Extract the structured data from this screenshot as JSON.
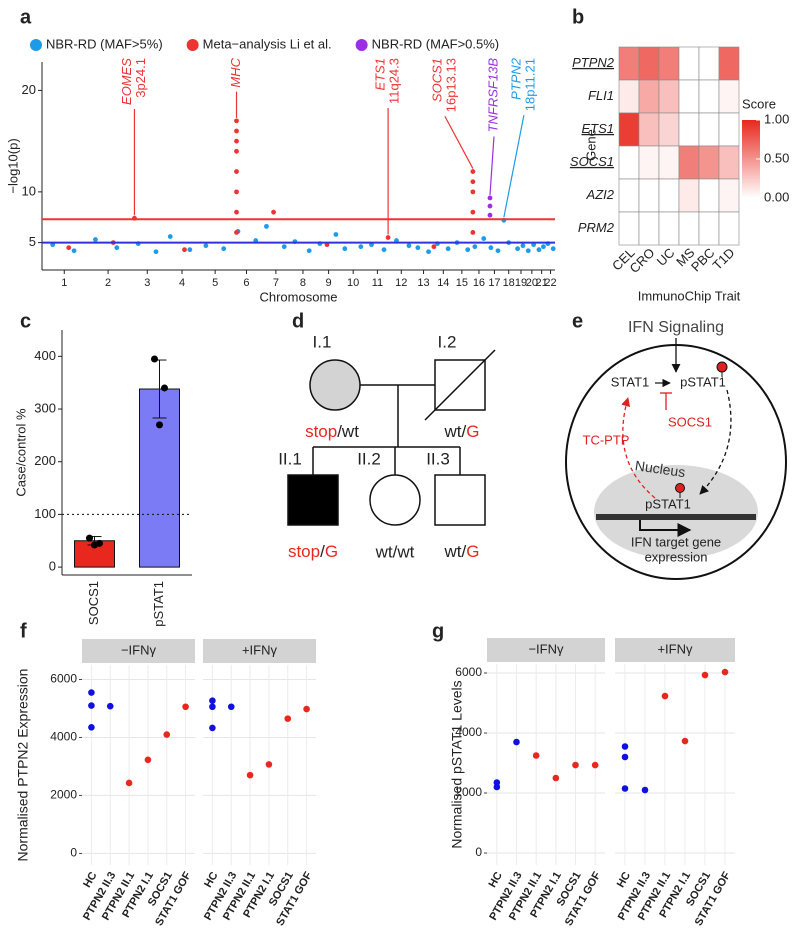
{
  "chart_data": [
    {
      "type": "scatter",
      "panel_label": "a",
      "ylabel": "−log10(p)",
      "xlabel": "Chromosome",
      "xlim": [
        0,
        2880
      ],
      "xticks": [
        {
          "value": 125,
          "label": "1"
        },
        {
          "value": 371,
          "label": "2"
        },
        {
          "value": 591,
          "label": "3"
        },
        {
          "value": 786,
          "label": "4"
        },
        {
          "value": 972,
          "label": "5"
        },
        {
          "value": 1148,
          "label": "6"
        },
        {
          "value": 1313,
          "label": "7"
        },
        {
          "value": 1465,
          "label": "8"
        },
        {
          "value": 1609,
          "label": "9"
        },
        {
          "value": 1747,
          "label": "10"
        },
        {
          "value": 1883,
          "label": "11"
        },
        {
          "value": 2017,
          "label": "12"
        },
        {
          "value": 2142,
          "label": "13"
        },
        {
          "value": 2253,
          "label": "14"
        },
        {
          "value": 2357,
          "label": "15"
        },
        {
          "value": 2453,
          "label": "16"
        },
        {
          "value": 2540,
          "label": "17"
        },
        {
          "value": 2620,
          "label": "18"
        },
        {
          "value": 2689,
          "label": "19"
        },
        {
          "value": 2750,
          "label": "20"
        },
        {
          "value": 2805,
          "label": "21"
        },
        {
          "value": 2855,
          "label": "22"
        }
      ],
      "ylim": [
        2.3,
        22.8
      ],
      "yticks": [
        5,
        10,
        20
      ],
      "hlines": [
        {
          "value": 7.3,
          "color": "#ee3333"
        },
        {
          "value": 5,
          "color": "#3030e0"
        }
      ],
      "legend_position": "top",
      "series": [
        {
          "name": "NBR-RD (MAF>5%)",
          "color": "#1e9be8",
          "x": [
            60,
            180,
            300,
            420,
            540,
            640,
            720,
            830,
            920,
            1020,
            1100,
            1200,
            1260,
            1360,
            1420,
            1500,
            1560,
            1650,
            1700,
            1790,
            1850,
            1920,
            1990,
            2060,
            2110,
            2170,
            2220,
            2280,
            2330,
            2390,
            2430,
            2480,
            2520,
            2560,
            2593,
            2620,
            2670,
            2700,
            2730,
            2760,
            2790,
            2815,
            2840,
            2870
          ],
          "values": [
            4.8,
            4.2,
            5.3,
            4.5,
            4.9,
            4.1,
            5.6,
            4.3,
            4.7,
            4.4,
            6.1,
            5.2,
            6.6,
            4.6,
            5.1,
            4.2,
            4.9,
            5.8,
            4.4,
            4.6,
            4.8,
            4.3,
            5.2,
            4.7,
            4.5,
            4.1,
            4.9,
            4.4,
            5.0,
            4.3,
            4.6,
            5.4,
            4.5,
            4.2,
            7.2,
            5.0,
            4.4,
            4.7,
            4.2,
            4.8,
            4.3,
            4.6,
            4.9,
            4.4
          ]
        },
        {
          "name": "Meta−analysis Li et al.",
          "color": "#ee3333",
          "x": [
            519,
            1092,
            1092,
            1092,
            1092,
            1092,
            1092,
            1092,
            1092,
            1300,
            1943,
            2419,
            2419,
            2419,
            2419,
            2419,
            150,
            400,
            800,
            1600,
            2200
          ],
          "values": [
            7.4,
            6,
            8,
            10,
            12,
            14,
            15,
            16,
            17,
            8.0,
            5.5,
            6,
            8,
            10,
            11,
            12,
            4.5,
            5.0,
            4.3,
            4.8,
            4.6
          ]
        },
        {
          "name": "NBR-RD (MAF>0.5%)",
          "color": "#9b30e0",
          "x": [
            2515,
            2515,
            2515
          ],
          "values": [
            9.4,
            8.6,
            7.7
          ]
        }
      ],
      "annotations": [
        {
          "lines": [
            "EOMES",
            "3p24.1"
          ],
          "x": 519,
          "y": 7.4,
          "color": "#ee3333"
        },
        {
          "lines": [
            "MHC"
          ],
          "x": 1092,
          "y": 17,
          "color": "#ee3333"
        },
        {
          "lines": [
            "ETS1",
            "11q24.3"
          ],
          "x": 1943,
          "y": 5.5,
          "color": "#ee3333"
        },
        {
          "lines": [
            "SOCS1",
            "16p13.13"
          ],
          "x": 2419,
          "y": 12,
          "color": "#ee3333"
        },
        {
          "lines": [
            "TNFRSF13B"
          ],
          "x": 2515,
          "y": 9.4,
          "color": "#9b30e0"
        },
        {
          "lines": [
            "PTPN2",
            "18p11.21"
          ],
          "x": 2593,
          "y": 7.2,
          "color": "#1e9be8"
        }
      ]
    },
    {
      "type": "heatmap",
      "panel_label": "b",
      "ylabel": "Gene",
      "xlabel": "ImmunoChip Trait",
      "x_categories": [
        "CEL",
        "CRO",
        "UC",
        "MS",
        "PBC",
        "T1D"
      ],
      "y_categories": [
        "PTPN2",
        "FLI1",
        "ETS1",
        "SOCS1",
        "AZI2",
        "PRM2"
      ],
      "underlined": [
        true,
        false,
        true,
        true,
        false,
        false
      ],
      "values": [
        [
          0.6,
          0.7,
          0.6,
          0,
          0,
          0.7
        ],
        [
          0.1,
          0.4,
          0.3,
          0,
          0,
          0.05
        ],
        [
          0.9,
          0.3,
          0.2,
          0,
          0,
          0
        ],
        [
          0,
          0.05,
          0.05,
          0.6,
          0.5,
          0.3
        ],
        [
          0,
          0,
          0,
          0.1,
          0,
          0.05
        ],
        [
          0,
          0,
          0,
          0,
          0,
          0
        ]
      ],
      "colorscale": [
        "#ffffff",
        "#e8281e"
      ],
      "clim": [
        0,
        1
      ],
      "legend_title": "Score",
      "legend_position": "right",
      "cticks": [
        {
          "value": 1,
          "label": "1.00"
        },
        {
          "value": 0.5,
          "label": "0.50"
        },
        {
          "value": 0,
          "label": "0.00"
        }
      ]
    },
    {
      "type": "bar",
      "panel_label": "c",
      "ylabel": "Case/control %",
      "categories": [
        "SOCS1",
        "pSTAT1"
      ],
      "values": [
        50,
        338
      ],
      "errors": [
        8,
        55
      ],
      "colors": [
        "#e8281e",
        "#7b7cf5"
      ],
      "points": [
        [
          55,
          45,
          42
        ],
        [
          395,
          340,
          270
        ]
      ],
      "hline": 100,
      "ylim": [
        -15,
        450
      ],
      "yticks": [
        0,
        100,
        200,
        300,
        400
      ]
    },
    {
      "type": "strip",
      "panel_label": "f",
      "ylabel": "Normalised PTPN2 Expression",
      "categories": [
        "HC",
        "PTPN2 II.3",
        "PTPN2 II.1",
        "PTPN2 I.1",
        "SOCS1",
        "STAT1 GOF"
      ],
      "colors": [
        "#1010e0",
        "#1010e0",
        "#e8281e",
        "#e8281e",
        "#e8281e",
        "#e8281e"
      ],
      "facets": [
        {
          "label": "−IFNγ",
          "values": [
            [
              5550,
              5100,
              4350
            ],
            [
              5080
            ],
            [
              2430
            ],
            [
              3230
            ],
            [
              4100
            ],
            [
              5060
            ]
          ]
        },
        {
          "label": "+IFNγ",
          "values": [
            [
              5270,
              5060,
              4330
            ],
            [
              5060
            ],
            [
              2700
            ],
            [
              3070
            ],
            [
              4650
            ],
            [
              4980
            ]
          ]
        }
      ],
      "ylim": [
        -400,
        6500
      ],
      "yticks": [
        0,
        2000,
        4000,
        6000
      ],
      "grid": true
    },
    {
      "type": "strip",
      "panel_label": "g",
      "ylabel": "Normalised pSTAT1 Levels",
      "categories": [
        "HC",
        "PTPN2 II.3",
        "PTPN2 II.1",
        "PTPN2 I.1",
        "SOCS1",
        "STAT1 GOF"
      ],
      "colors": [
        "#1010e0",
        "#1010e0",
        "#e8281e",
        "#e8281e",
        "#e8281e",
        "#e8281e"
      ],
      "facets": [
        {
          "label": "−IFNγ",
          "values": [
            [
              2350,
              2200
            ],
            [
              3700
            ],
            [
              3250
            ],
            [
              2500
            ],
            [
              2930
            ],
            [
              2930
            ]
          ]
        },
        {
          "label": "+IFNγ",
          "values": [
            [
              3550,
              3200,
              2150
            ],
            [
              2100
            ],
            [
              5230
            ],
            [
              3730
            ],
            [
              5930
            ],
            [
              6030
            ]
          ]
        }
      ],
      "ylim": [
        -400,
        6300
      ],
      "yticks": [
        0,
        2000,
        4000,
        6000
      ],
      "grid": true
    }
  ],
  "pedigree": {
    "panel_label": "d",
    "individuals": [
      {
        "id": "I.1",
        "genotype": [
          "stop",
          "/wt"
        ]
      },
      {
        "id": "I.2",
        "genotype": [
          "wt/",
          "G"
        ]
      },
      {
        "id": "II.1",
        "genotype": [
          "stop",
          "/",
          "G"
        ]
      },
      {
        "id": "II.2",
        "genotype": [
          "wt/wt"
        ]
      },
      {
        "id": "II.3",
        "genotype": [
          "wt/",
          "G"
        ]
      }
    ]
  },
  "pathway": {
    "panel_label": "e",
    "title": "IFN Signaling",
    "labels": [
      "STAT1",
      "pSTAT1",
      "SOCS1",
      "TC-PTP",
      "Nucleus",
      "pSTAT1",
      "IFN target gene",
      "expression"
    ]
  }
}
